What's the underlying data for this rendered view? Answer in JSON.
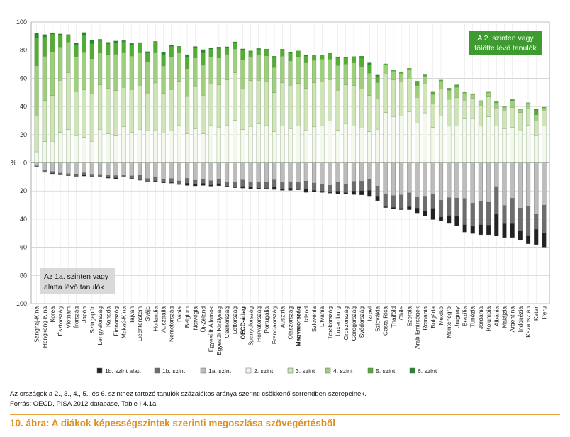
{
  "chart_data": {
    "type": "bar",
    "stacked": true,
    "diverging": true,
    "ylabel": "%",
    "ylim": [
      -100,
      100
    ],
    "yticks": [
      100,
      80,
      60,
      40,
      20,
      0,
      20,
      40,
      60,
      80,
      100
    ],
    "grid": true,
    "legend_position": "bottom",
    "annotations": {
      "above": "A 2. szinten vagy fölötte lévő tanulók",
      "below": "Az 1a. szinten vagy alatta lévő tanulók"
    },
    "colors": {
      "lvl1b_below": "#222222",
      "lvl1b": "#6d6d6d",
      "lvl1a": "#bdbdbd",
      "lvl2": "#f3f8ec",
      "lvl3": "#cfe5b8",
      "lvl4": "#9ecf7c",
      "lvl5": "#52ad33",
      "lvl6": "#1f8a2e"
    },
    "legend": [
      "1b. szint alatt",
      "1b. szint",
      "1a. szint",
      "2. szint",
      "3. szint",
      "4. szint",
      "5. szint",
      "6. szint"
    ],
    "highlighted": [
      "OECD-átlag",
      "Magyarország"
    ],
    "categories": [
      "Sanghaj-Kína",
      "Hongkong-Kína",
      "Korea",
      "Észtország",
      "Vietnam",
      "Írország",
      "Japán",
      "Szingapúr",
      "Lengyelország",
      "Kanada",
      "Finnország",
      "Makaó-Kína",
      "Tajvan",
      "Liechtenstein",
      "Svájc",
      "Hollandia",
      "Ausztrália",
      "Németország",
      "Dánia",
      "Belgium",
      "Norvégia",
      "Új-Zéland",
      "Egyesült Államok",
      "Egyesült Királyság",
      "Csehország",
      "Lettország",
      "OECD-átlag",
      "Spanyolország",
      "Horvátország",
      "Portugália",
      "Franciaország",
      "Ausztria",
      "Olaszország",
      "Magyarország",
      "Izland",
      "Szlovénia",
      "Litvánia",
      "Törökország",
      "Luxemburg",
      "Oroszország",
      "Görögország",
      "Svédország",
      "Izrael",
      "Szlovákia",
      "Costa Rica",
      "Thaiföld",
      "Chile",
      "Szerbia",
      "Arab Emírségek",
      "Románia",
      "Bulgária",
      "Mexikó",
      "Montenegró",
      "Uruguay",
      "Brazília",
      "Tunézia",
      "Jordánia",
      "Kolumbia",
      "Albánia",
      "Malájzia",
      "Argentína",
      "Indonézia",
      "Kazahsztán",
      "Katar",
      "Peru"
    ],
    "series": [
      {
        "name": "1b. szint alatt",
        "sign": "negative",
        "values": [
          0.1,
          0.2,
          0.4,
          0.1,
          0.1,
          0.3,
          0.6,
          0.5,
          0.1,
          0.5,
          0.7,
          0.3,
          0.5,
          0.2,
          0.5,
          0.5,
          0.9,
          0.5,
          0.4,
          1.6,
          1.2,
          1.5,
          0.8,
          1.5,
          0.5,
          0.4,
          1.3,
          1.1,
          0.5,
          0.6,
          2.1,
          0.8,
          1.6,
          0.7,
          2.3,
          1.2,
          1.0,
          0.6,
          2.0,
          1.1,
          2.6,
          2.9,
          3.9,
          3.4,
          0.6,
          1.1,
          1.0,
          2.1,
          3.5,
          3.5,
          8.0,
          2.6,
          5.7,
          6.6,
          5.2,
          5.2,
          7.1,
          6.9,
          15.4,
          9.8,
          9.7,
          6.7,
          6.1,
          10.9,
          9.8
        ]
      },
      {
        "name": "1b. szint",
        "sign": "negative",
        "values": [
          0.7,
          1.3,
          1.2,
          1.2,
          1.3,
          1.3,
          1.7,
          1.6,
          1.7,
          1.8,
          1.6,
          1.3,
          1.8,
          3.4,
          2.0,
          2.4,
          2.0,
          2.8,
          2.2,
          3.4,
          2.8,
          3.2,
          3.0,
          3.4,
          2.8,
          3.6,
          4.4,
          3.8,
          4.4,
          4.1,
          4.7,
          4.7,
          4.6,
          4.4,
          5.7,
          5.1,
          5.0,
          4.9,
          6.1,
          6.1,
          6.8,
          6.8,
          8.1,
          7.0,
          8.9,
          8.4,
          9.4,
          9.8,
          7.8,
          10.5,
          10.2,
          11.8,
          12.6,
          12.9,
          18.6,
          16.4,
          16.6,
          16.1,
          19.6,
          13.0,
          18.1,
          16.3,
          20.3,
          10.5,
          20.0
        ]
      },
      {
        "name": "1a. szint",
        "sign": "negative",
        "values": [
          2.1,
          5.3,
          6.2,
          7.3,
          7.8,
          8.0,
          7.1,
          8.1,
          8.3,
          8.6,
          9.1,
          8.6,
          9.3,
          8.8,
          11.3,
          10.4,
          11.4,
          11.2,
          12.9,
          11.1,
          12.4,
          11.4,
          12.8,
          11.4,
          13.8,
          13.7,
          12.3,
          13.5,
          13.5,
          14.0,
          12.2,
          14.1,
          13.4,
          14.1,
          13.0,
          14.4,
          15.1,
          16.1,
          14.0,
          15.1,
          13.2,
          13.1,
          11.5,
          16.5,
          22.3,
          23.3,
          22.9,
          21.4,
          24.3,
          23.7,
          22.1,
          26.7,
          24.8,
          25.1,
          25.4,
          28.7,
          27.4,
          28.1,
          16.9,
          30.3,
          25.2,
          32.1,
          31.2,
          36.7,
          30.1
        ]
      },
      {
        "name": "2. szint",
        "sign": "positive",
        "values": [
          7.8,
          15.1,
          15.2,
          21.6,
          23.6,
          19.3,
          18.1,
          15.2,
          23.8,
          20.6,
          19.1,
          25.7,
          21.7,
          23.8,
          22.9,
          23.4,
          21.2,
          22.8,
          26.8,
          20.5,
          24.0,
          20.6,
          26.9,
          25.4,
          26.9,
          30.2,
          23.5,
          25.8,
          27.6,
          26.8,
          22.2,
          26.3,
          24.3,
          26.2,
          23.3,
          25.5,
          26.4,
          29.7,
          23.1,
          27.8,
          26.2,
          24.7,
          22.0,
          23.9,
          35.7,
          32.8,
          33.4,
          36.3,
          28.4,
          35.5,
          25.1,
          33.2,
          26.0,
          26.2,
          31.2,
          31.4,
          26.0,
          32.7,
          26.1,
          24.0,
          25.2,
          22.7,
          26.5,
          19.3,
          26.3
        ]
      },
      {
        "name": "3. szint",
        "sign": "positive",
        "values": [
          25.4,
          29.2,
          32.5,
          36.9,
          40.4,
          30.9,
          33.8,
          34.3,
          31.5,
          32.1,
          32.1,
          27.9,
          30.3,
          31.2,
          26.7,
          33.3,
          28.1,
          29.2,
          31.0,
          26.6,
          30.6,
          27.3,
          29.2,
          29.9,
          32.0,
          33.6,
          29.1,
          32.5,
          31.0,
          30.5,
          27.6,
          30.5,
          30.7,
          30.1,
          29.4,
          31.4,
          31.2,
          29.3,
          28.5,
          27.5,
          28.7,
          27.6,
          25.7,
          21.5,
          27.2,
          26.0,
          24.1,
          23.1,
          18.1,
          20.3,
          17.3,
          19.0,
          19.1,
          20.0,
          12.7,
          14.3,
          14.5,
          14.0,
          12.9,
          12.6,
          14.1,
          12.9,
          11.8,
          10.3,
          10.4
        ]
      },
      {
        "name": "4. szint",
        "sign": "positive",
        "values": [
          35.7,
          31.3,
          30.8,
          23.7,
          21.8,
          24.8,
          26.4,
          24.4,
          22.7,
          24.1,
          25.9,
          24.5,
          23.8,
          23.1,
          22.0,
          21.4,
          19.5,
          22.9,
          20.2,
          19.8,
          19.9,
          21.4,
          19.1,
          19.1,
          18.2,
          17.1,
          20.7,
          17.2,
          18.3,
          18.7,
          17.9,
          18.9,
          17.4,
          18.6,
          18.3,
          15.9,
          16.1,
          14.6,
          17.5,
          14.8,
          16.1,
          16.1,
          16.0,
          11.6,
          6.8,
          6.3,
          6.0,
          7.1,
          8.4,
          5.7,
          6.2,
          6.0,
          6.5,
          7.4,
          5.7,
          2.7,
          3.2,
          3.2,
          3.6,
          2.9,
          4.9,
          2.3,
          4.2,
          4.5,
          2.3
        ]
      },
      {
        "name": "5. szint",
        "sign": "positive",
        "values": [
          19.6,
          13.6,
          12.8,
          8.1,
          5.0,
          8.8,
          12.0,
          10.6,
          8.7,
          7.6,
          8.2,
          7.8,
          7.6,
          7.0,
          6.3,
          7.7,
          8.0,
          7.7,
          4.5,
          8.2,
          7.1,
          8.6,
          5.6,
          6.7,
          4.7,
          4.4,
          6.9,
          3.5,
          3.6,
          4.5,
          6.9,
          4.6,
          5.4,
          4.4,
          4.8,
          3.8,
          2.8,
          4.1,
          5.4,
          4.3,
          4.1,
          6.1,
          5.8,
          4.4,
          0.6,
          1.0,
          0.9,
          0.7,
          2.9,
          0.9,
          2.0,
          0.6,
          1.4,
          1.8,
          0.7,
          0.7,
          0.5,
          0.8,
          0.8,
          0.3,
          0.8,
          0.2,
          0.2,
          3.5,
          0.5
        ]
      },
      {
        "name": "6. szint",
        "sign": "positive",
        "values": [
          3.8,
          1.9,
          1.1,
          1.2,
          0.3,
          1.4,
          2.3,
          2.7,
          1.0,
          1.2,
          1.2,
          0.9,
          1.4,
          0.3,
          1.1,
          0.4,
          1.7,
          0.9,
          0.3,
          1.7,
          1.0,
          2.5,
          1.0,
          1.2,
          0.6,
          0.6,
          0.7,
          0.5,
          0.7,
          0.3,
          1.1,
          0.4,
          0.6,
          0.2,
          0.6,
          0.1,
          0.1,
          0.1,
          0.8,
          0.4,
          0.4,
          1.2,
          1.5,
          0.9,
          0.0,
          0.1,
          0.3,
          0.0,
          0.2,
          0.1,
          0.1,
          0.0,
          0.0,
          0.0,
          0.0,
          0.0,
          0.0,
          0.0,
          0.0,
          0.0,
          0.0,
          0.0,
          0.0,
          0.7,
          0.0
        ]
      }
    ]
  },
  "notes": {
    "line1": "Az országok a 2., 3., 4., 5., és 6. szinthez tartozó tanulók százalékos aránya szerinti csökkenő sorrendben szerepelnek.",
    "line2": "Forrás: OECD, PISA 2012 database, Table I.4.1a."
  },
  "caption": "10. ábra: A diákok képességszintek szerinti megoszlása szövegértésből"
}
